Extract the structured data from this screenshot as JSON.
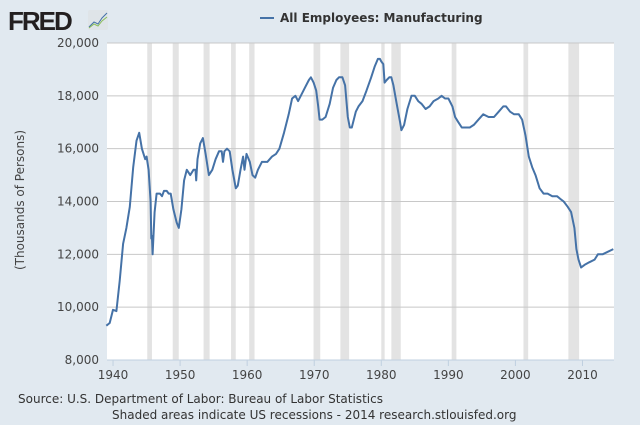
{
  "logo": {
    "text": "FRED"
  },
  "chart_data": {
    "type": "line",
    "title": "",
    "xlabel": "",
    "ylabel": "(Thousands of Persons)",
    "xlim": [
      1939.1,
      2014.7
    ],
    "ylim": [
      8000,
      20000
    ],
    "grid": true,
    "legend_placement": "top-center",
    "x_ticks": [
      "1940",
      "1950",
      "1960",
      "1970",
      "1980",
      "1990",
      "2000",
      "2010"
    ],
    "y_ticks": [
      "8,000",
      "10,000",
      "12,000",
      "14,000",
      "16,000",
      "18,000",
      "20,000"
    ],
    "colors": {
      "series": "#4572a7",
      "recession": "#e3e3e3",
      "grid": "#c8c8c8"
    },
    "recessions": [
      [
        1945.1,
        1945.8
      ],
      [
        1948.9,
        1949.8
      ],
      [
        1953.5,
        1954.4
      ],
      [
        1957.6,
        1958.3
      ],
      [
        1960.3,
        1961.1
      ],
      [
        1969.9,
        1970.9
      ],
      [
        1973.9,
        1975.2
      ],
      [
        1980.0,
        1980.5
      ],
      [
        1981.5,
        1982.9
      ],
      [
        1990.5,
        1991.2
      ],
      [
        2001.2,
        2001.9
      ],
      [
        2007.9,
        2009.5
      ]
    ],
    "series": [
      {
        "name": "All Employees: Manufacturing",
        "x": [
          1939.0,
          1939.5,
          1940,
          1940.5,
          1941,
          1941.5,
          1942,
          1942.5,
          1943,
          1943.5,
          1943.9,
          1944.3,
          1944.8,
          1945.0,
          1945.3,
          1945.6,
          1945.7,
          1945.8,
          1945.9,
          1946.2,
          1946.5,
          1947,
          1947.3,
          1947.6,
          1948,
          1948.3,
          1948.6,
          1949,
          1949.5,
          1949.8,
          1950.2,
          1950.6,
          1951,
          1951.5,
          1952,
          1952.3,
          1952.4,
          1952.6,
          1953,
          1953.4,
          1953.8,
          1954.3,
          1954.8,
          1955.3,
          1955.8,
          1956.2,
          1956.4,
          1956.6,
          1957,
          1957.4,
          1957.8,
          1958.3,
          1958.6,
          1959,
          1959.4,
          1959.6,
          1959.9,
          1960.4,
          1960.8,
          1961.2,
          1961.6,
          1962.2,
          1963,
          1963.7,
          1964.3,
          1964.8,
          1965.5,
          1966.2,
          1966.7,
          1967.2,
          1967.6,
          1968,
          1968.6,
          1969.2,
          1969.5,
          1969.9,
          1970.3,
          1970.6,
          1970.8,
          1971.2,
          1971.7,
          1972.3,
          1972.8,
          1973.3,
          1973.7,
          1974.2,
          1974.6,
          1975.0,
          1975.3,
          1975.6,
          1976.2,
          1976.6,
          1977.2,
          1977.8,
          1978.5,
          1979.0,
          1979.5,
          1979.8,
          1980.0,
          1980.3,
          1980.5,
          1980.8,
          1981.2,
          1981.5,
          1981.8,
          1982.3,
          1982.8,
          1983.0,
          1983.4,
          1983.9,
          1984.5,
          1985,
          1985.5,
          1986,
          1986.6,
          1987.2,
          1987.8,
          1988.5,
          1989,
          1989.5,
          1990.0,
          1990.6,
          1991.0,
          1991.5,
          1992,
          1992.6,
          1993.2,
          1993.8,
          1994.5,
          1995.2,
          1996,
          1996.8,
          1997.5,
          1998.2,
          1998.6,
          1999.2,
          1999.8,
          2000.5,
          2001.0,
          2001.5,
          2002,
          2002.5,
          2003,
          2003.6,
          2004.2,
          2004.8,
          2005.5,
          2006.2,
          2006.7,
          2007.2,
          2007.8,
          2008.3,
          2008.8,
          2009.1,
          2009.4,
          2009.8,
          2010.3,
          2011,
          2011.8,
          2012.3,
          2013,
          2013.8,
          2014.6
        ],
        "values": [
          9300,
          9400,
          9900,
          9850,
          11000,
          12400,
          13000,
          13800,
          15300,
          16300,
          16600,
          16000,
          15600,
          15700,
          15200,
          14000,
          12600,
          12700,
          12000,
          13600,
          14300,
          14300,
          14200,
          14400,
          14400,
          14300,
          14300,
          13700,
          13200,
          13000,
          13700,
          14800,
          15200,
          15000,
          15200,
          15200,
          14800,
          15600,
          16200,
          16400,
          15800,
          15000,
          15200,
          15600,
          15900,
          15900,
          15500,
          15900,
          16000,
          15900,
          15200,
          14500,
          14600,
          15200,
          15700,
          15200,
          15800,
          15500,
          15000,
          14900,
          15200,
          15500,
          15500,
          15700,
          15800,
          16000,
          16600,
          17300,
          17900,
          18000,
          17800,
          18000,
          18300,
          18600,
          18700,
          18500,
          18200,
          17600,
          17100,
          17100,
          17200,
          17700,
          18300,
          18600,
          18700,
          18700,
          18400,
          17200,
          16800,
          16800,
          17400,
          17600,
          17800,
          18200,
          18700,
          19100,
          19400,
          19400,
          19300,
          19200,
          18500,
          18600,
          18700,
          18700,
          18400,
          17700,
          17000,
          16700,
          16900,
          17500,
          18000,
          18000,
          17800,
          17700,
          17500,
          17600,
          17800,
          17900,
          18000,
          17900,
          17900,
          17600,
          17200,
          17000,
          16800,
          16800,
          16800,
          16900,
          17100,
          17300,
          17200,
          17200,
          17400,
          17600,
          17600,
          17400,
          17300,
          17300,
          17100,
          16500,
          15700,
          15300,
          15000,
          14500,
          14300,
          14300,
          14200,
          14200,
          14100,
          14000,
          13800,
          13600,
          13000,
          12200,
          11800,
          11500,
          11600,
          11700,
          11800,
          12000,
          12000,
          12100,
          12200
        ]
      }
    ]
  },
  "footer": {
    "source": "Source: U.S. Department of Labor: Bureau of Labor Statistics",
    "note": "Shaded areas indicate US recessions - 2014 research.stlouisfed.org"
  }
}
